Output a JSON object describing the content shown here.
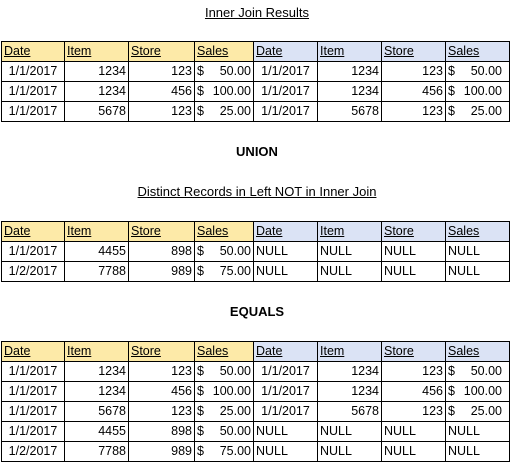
{
  "captions": {
    "inner_join": "Inner Join Results",
    "union": "UNION",
    "distinct": "Distinct Records in Left NOT in Inner Join",
    "equals": "EQUALS"
  },
  "headers": [
    "Date",
    "Item",
    "Store",
    "Sales",
    "Date",
    "Item",
    "Store",
    "Sales"
  ],
  "currency_symbol": "$",
  "colors": {
    "left_header": "#fdeaa8",
    "right_header": "#dbe3f5"
  },
  "tables": {
    "inner_join": [
      [
        "1/1/2017",
        "1234",
        "123",
        "50.00",
        "1/1/2017",
        "1234",
        "123",
        "50.00"
      ],
      [
        "1/1/2017",
        "1234",
        "456",
        "100.00",
        "1/1/2017",
        "1234",
        "456",
        "100.00"
      ],
      [
        "1/1/2017",
        "5678",
        "123",
        "25.00",
        "1/1/2017",
        "5678",
        "123",
        "25.00"
      ]
    ],
    "distinct": [
      [
        "1/1/2017",
        "4455",
        "898",
        "50.00",
        "NULL",
        "NULL",
        "NULL",
        "NULL"
      ],
      [
        "1/2/2017",
        "7788",
        "989",
        "75.00",
        "NULL",
        "NULL",
        "NULL",
        "NULL"
      ]
    ],
    "equals": [
      [
        "1/1/2017",
        "1234",
        "123",
        "50.00",
        "1/1/2017",
        "1234",
        "123",
        "50.00"
      ],
      [
        "1/1/2017",
        "1234",
        "456",
        "100.00",
        "1/1/2017",
        "1234",
        "456",
        "100.00"
      ],
      [
        "1/1/2017",
        "5678",
        "123",
        "25.00",
        "1/1/2017",
        "5678",
        "123",
        "25.00"
      ],
      [
        "1/1/2017",
        "4455",
        "898",
        "50.00",
        "NULL",
        "NULL",
        "NULL",
        "NULL"
      ],
      [
        "1/2/2017",
        "7788",
        "989",
        "75.00",
        "NULL",
        "NULL",
        "NULL",
        "NULL"
      ]
    ]
  }
}
